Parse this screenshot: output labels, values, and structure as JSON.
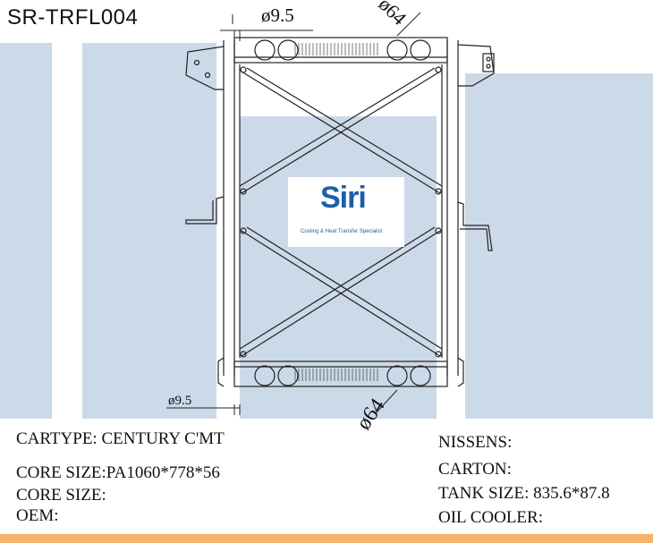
{
  "part_number": "SR-TRFL004",
  "dimensions": {
    "top_pipe": "ø9.5",
    "bottom_pipe": "ø9.5",
    "top_inlet": "ø64",
    "bottom_outlet": "ø64"
  },
  "logo": {
    "word": "Siri",
    "tagline": "Cooling & Heat Transfer Specialist"
  },
  "specs_left": [
    "CARTYPE: CENTURY C'MT",
    "CORE SIZE:PA1060*778*56",
    "CORE SIZE:",
    "OEM:"
  ],
  "specs_right": [
    "NISSENS:",
    "CARTON:",
    "TANK SIZE: 835.6*87.8",
    "OIL COOLER:"
  ],
  "colors": {
    "background_band": "#ccd9e8",
    "logo_blue": "#1d5ea8",
    "bottom_accent": "#f5b26a"
  }
}
